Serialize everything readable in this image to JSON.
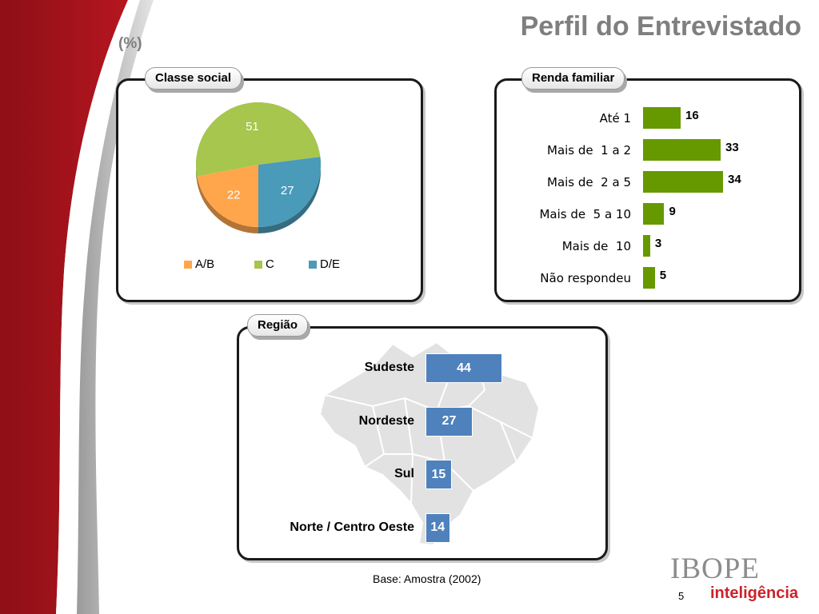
{
  "header": {
    "title": "Perfil do Entrevistado",
    "unit": "(%)"
  },
  "panels": {
    "classe_social": {
      "tab_label": "Classe social"
    },
    "renda_familiar": {
      "tab_label": "Renda familiar"
    },
    "regiao": {
      "tab_label": "Região"
    }
  },
  "chart_data": [
    {
      "type": "pie",
      "title": "Classe social",
      "categories": [
        "A/B",
        "C",
        "D/E"
      ],
      "values": [
        22,
        51,
        27
      ],
      "colors": [
        "#ffa64d",
        "#a6c64d",
        "#4a9ab9"
      ],
      "legend": "bottom"
    },
    {
      "type": "bar",
      "orientation": "horizontal",
      "title": "Renda familiar",
      "categories": [
        "Até 1",
        "Mais de  1 a 2",
        "Mais de  2 a 5",
        "Mais de  5 a 10",
        "Mais de  10",
        "Não respondeu"
      ],
      "values": [
        16,
        33,
        34,
        9,
        3,
        5
      ],
      "color": "#669900",
      "xlim": [
        0,
        40
      ]
    },
    {
      "type": "bar",
      "orientation": "horizontal",
      "title": "Região",
      "categories": [
        "Sudeste",
        "Nordeste",
        "Sul",
        "Norte / Centro Oeste"
      ],
      "values": [
        44,
        27,
        15,
        14
      ],
      "color": "#4f81bd",
      "xlim": [
        0,
        50
      ]
    }
  ],
  "footer": {
    "base_text": "Base: Amostra (2002)",
    "page_number": "5",
    "logo_text": "IBOPE",
    "logo_subtext": "inteligência"
  }
}
